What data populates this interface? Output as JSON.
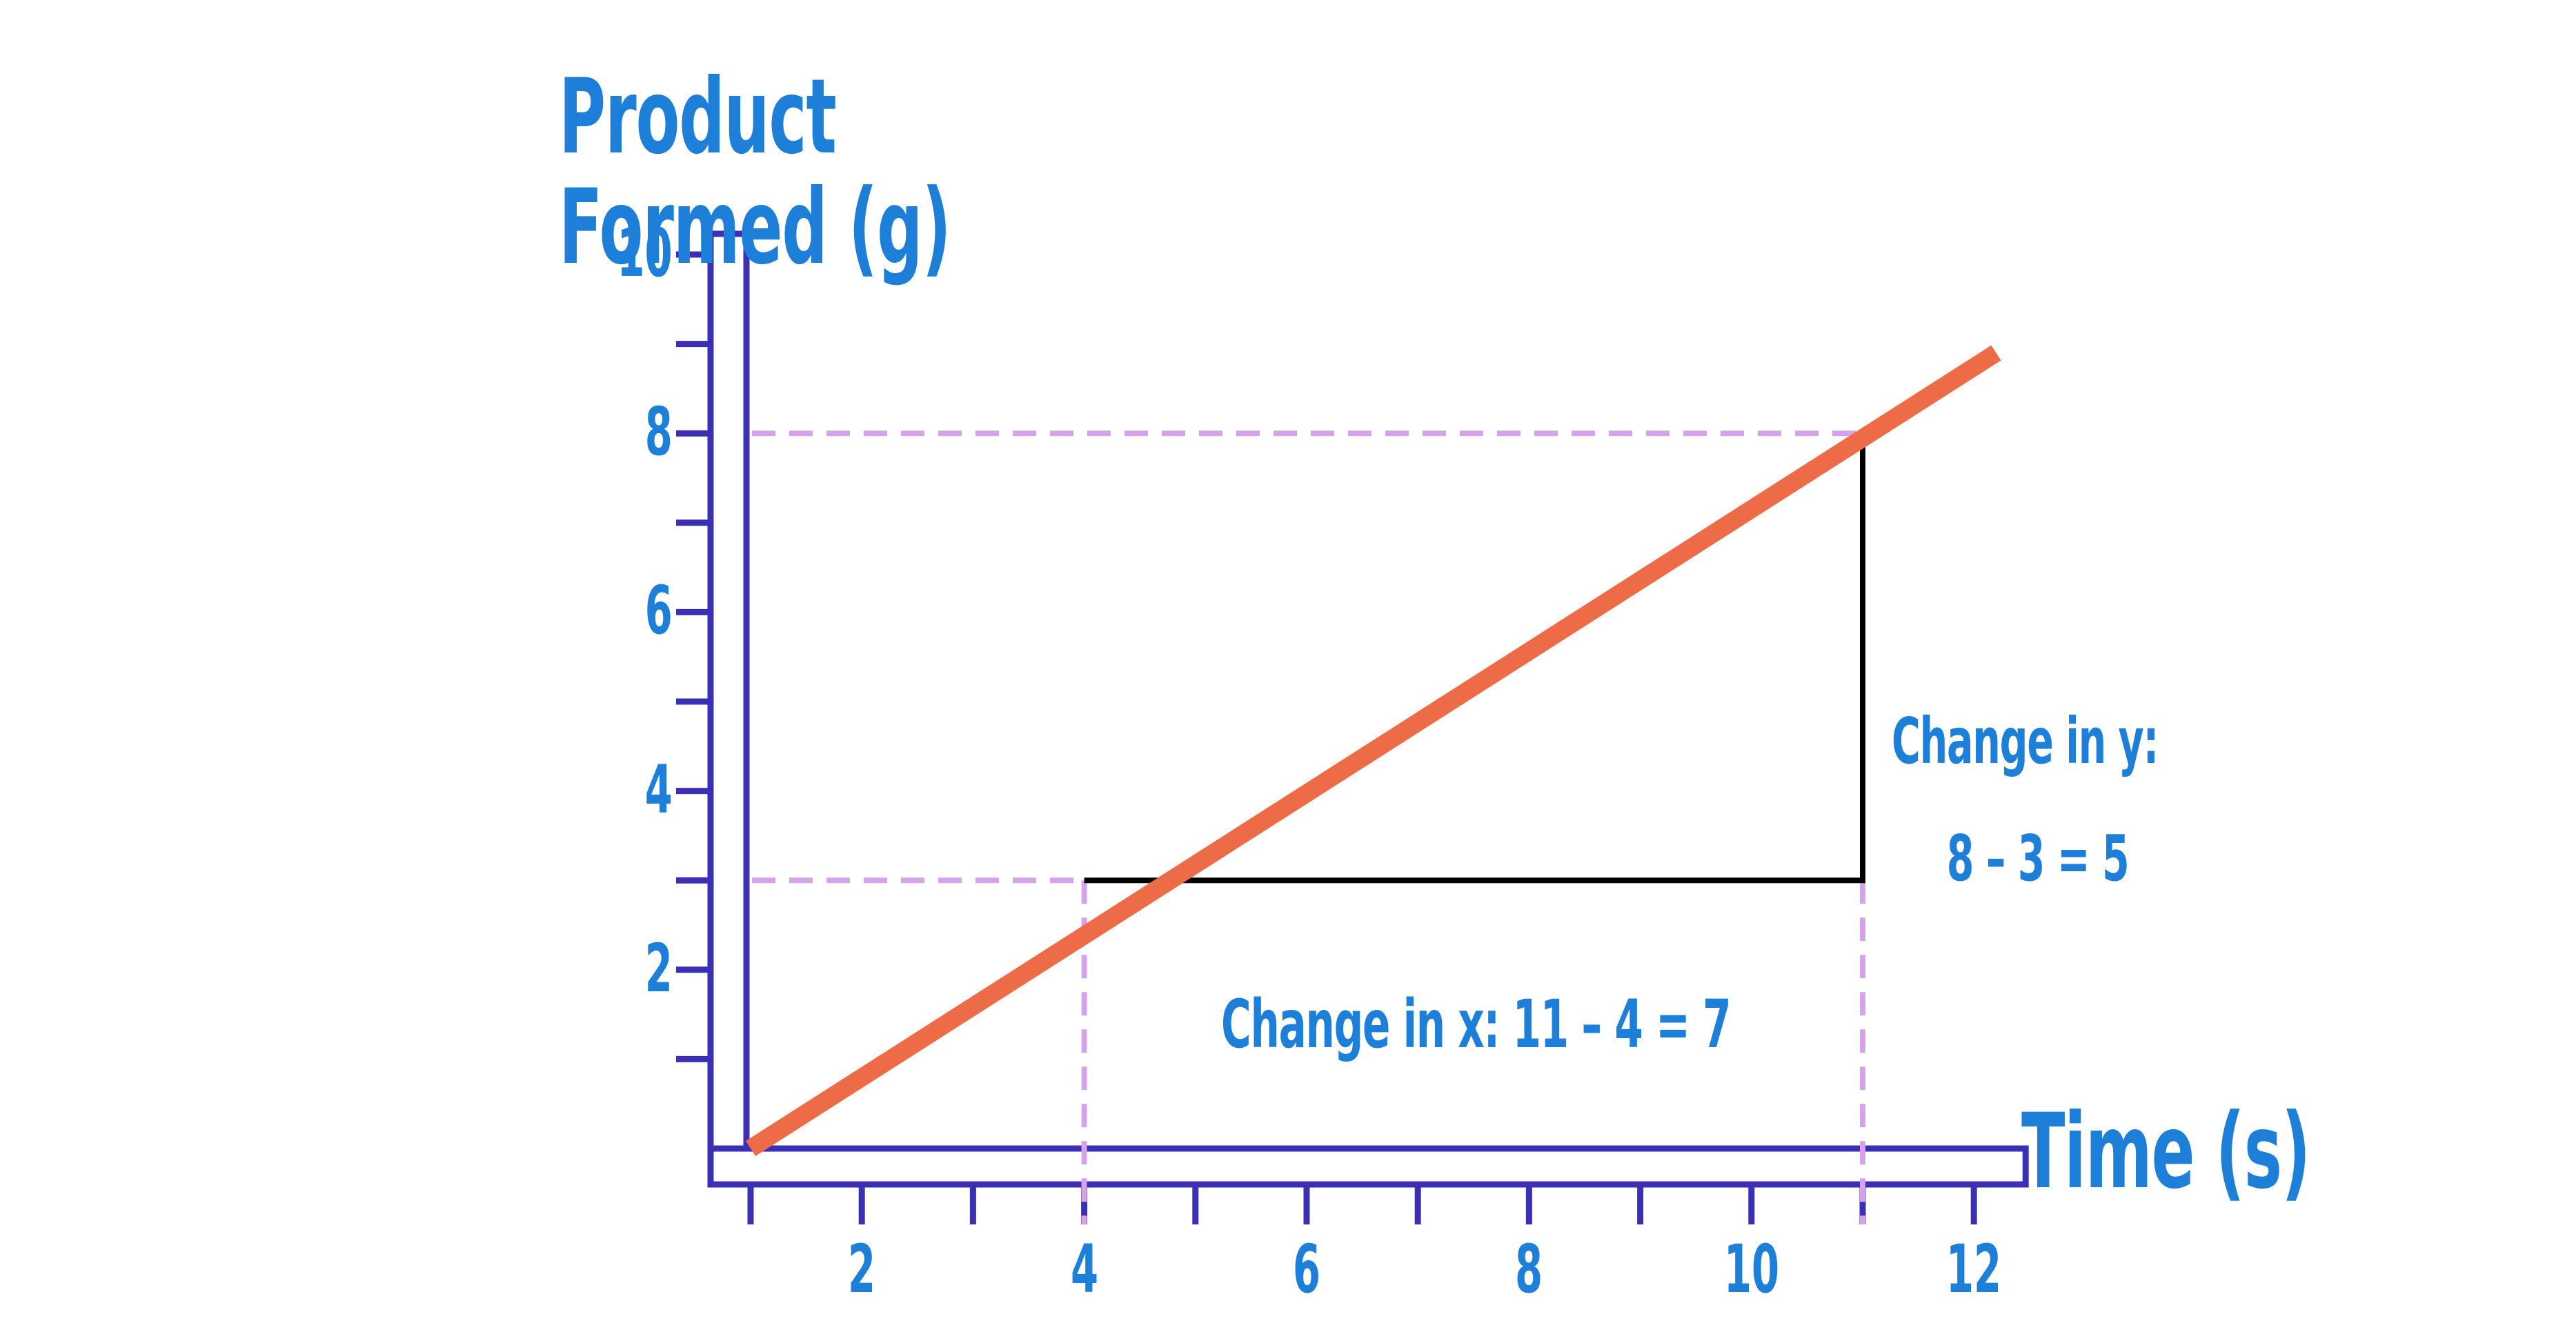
{
  "chart_data": {
    "type": "line",
    "ylabel": "Product Formed (g)",
    "ylabel_lines": [
      "Product",
      "Formed (g)"
    ],
    "xlabel": "Time (s)",
    "x_ticks": [
      "2",
      "4",
      "6",
      "8",
      "10",
      "12"
    ],
    "y_ticks": [
      "2",
      "4",
      "6",
      "8",
      "10"
    ],
    "xlim": [
      1,
      12
    ],
    "ylim": [
      0,
      10
    ],
    "series": [
      {
        "x": [
          1,
          12.2
        ],
        "y": [
          0,
          8.9
        ]
      }
    ],
    "guides": {
      "point_a": {
        "x": 4,
        "y": 3
      },
      "point_b": {
        "x": 11,
        "y": 8
      }
    },
    "annotations": {
      "change_y_title": "Change in y:",
      "change_y_calc": "8 – 3 = 5",
      "change_x": "Change in x: 11 – 4 = 7"
    },
    "grid": false,
    "legend": "none",
    "colors": {
      "axis": "#3b2fb3",
      "axis_fill": "#ffffff",
      "line": "#ee6b47",
      "guide": "#d6a3ea",
      "triangle": "#000000",
      "text": "#1d7fd8"
    }
  }
}
